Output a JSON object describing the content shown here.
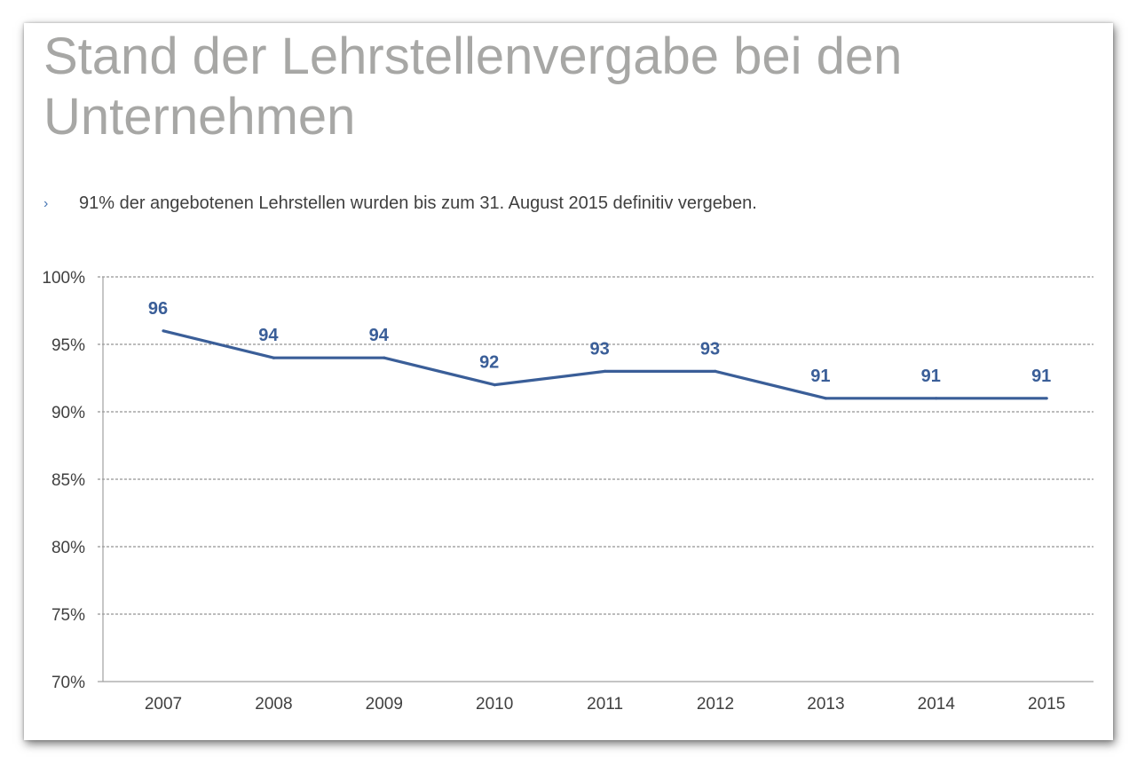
{
  "slide": {
    "title_line1": "Stand der Lehrstellenvergabe bei den",
    "title_line2": "Unternehmen",
    "bullet_marker": "›",
    "bullet_text": "91% der angebotenen Lehrstellen wurden bis zum 31. August 2015 definitiv vergeben."
  },
  "colors": {
    "line": "#3a5e98",
    "title": "#a7a7a5",
    "grid": "#7a7a7a",
    "axis": "#a0a0a0",
    "tick_text": "#404040"
  },
  "chart_data": {
    "type": "line",
    "title": "",
    "xlabel": "",
    "ylabel": "",
    "categories": [
      "2007",
      "2008",
      "2009",
      "2010",
      "2011",
      "2012",
      "2013",
      "2014",
      "2015"
    ],
    "series": [
      {
        "values": [
          96,
          94,
          94,
          92,
          93,
          93,
          91,
          91,
          91
        ]
      }
    ],
    "data_labels": [
      "96",
      "94",
      "94",
      "92",
      "93",
      "93",
      "91",
      "91",
      "91"
    ],
    "ylim": [
      70,
      100
    ],
    "yticks": [
      70,
      75,
      80,
      85,
      90,
      95,
      100
    ],
    "ytick_labels": [
      "70%",
      "75%",
      "80%",
      "85%",
      "90%",
      "95%",
      "100%"
    ],
    "grid": "horizontal-dashed",
    "legend": "none"
  }
}
